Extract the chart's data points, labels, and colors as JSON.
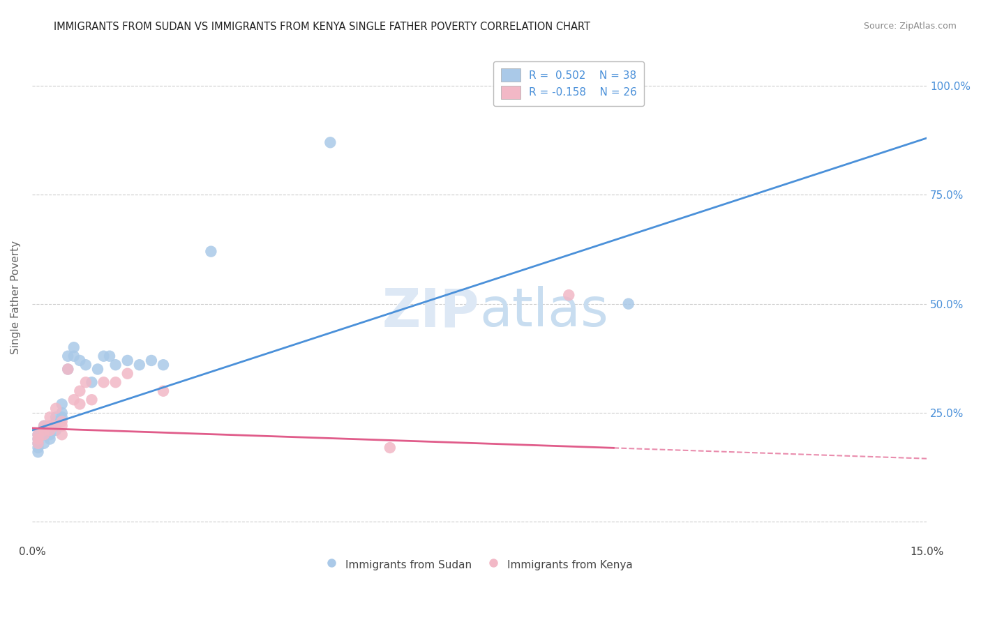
{
  "title": "IMMIGRANTS FROM SUDAN VS IMMIGRANTS FROM KENYA SINGLE FATHER POVERTY CORRELATION CHART",
  "source": "Source: ZipAtlas.com",
  "ylabel": "Single Father Poverty",
  "legend_label1": "Immigrants from Sudan",
  "legend_label2": "Immigrants from Kenya",
  "r1": 0.502,
  "n1": 38,
  "r2": -0.158,
  "n2": 26,
  "xlim": [
    0.0,
    0.15
  ],
  "ylim": [
    -0.05,
    1.08
  ],
  "yticks": [
    0.0,
    0.25,
    0.5,
    0.75,
    1.0
  ],
  "bg_color": "#ffffff",
  "grid_color": "#cccccc",
  "color_sudan": "#aac9e8",
  "color_kenya": "#f2b8c6",
  "trend_color_sudan": "#4a90d9",
  "trend_color_kenya": "#e05c8a",
  "sudan_x": [
    0.001,
    0.001,
    0.001,
    0.001,
    0.001,
    0.002,
    0.002,
    0.002,
    0.002,
    0.003,
    0.003,
    0.003,
    0.003,
    0.004,
    0.004,
    0.004,
    0.004,
    0.005,
    0.005,
    0.005,
    0.006,
    0.006,
    0.007,
    0.007,
    0.008,
    0.009,
    0.01,
    0.011,
    0.012,
    0.013,
    0.014,
    0.016,
    0.018,
    0.02,
    0.022,
    0.03,
    0.05,
    0.1
  ],
  "sudan_y": [
    0.18,
    0.19,
    0.2,
    0.16,
    0.17,
    0.21,
    0.22,
    0.2,
    0.18,
    0.2,
    0.21,
    0.22,
    0.19,
    0.23,
    0.22,
    0.24,
    0.21,
    0.25,
    0.27,
    0.24,
    0.35,
    0.38,
    0.4,
    0.38,
    0.37,
    0.36,
    0.32,
    0.35,
    0.38,
    0.38,
    0.36,
    0.37,
    0.36,
    0.37,
    0.36,
    0.62,
    0.87,
    0.5
  ],
  "kenya_x": [
    0.001,
    0.001,
    0.001,
    0.002,
    0.002,
    0.002,
    0.003,
    0.003,
    0.003,
    0.004,
    0.004,
    0.005,
    0.005,
    0.005,
    0.006,
    0.007,
    0.008,
    0.008,
    0.009,
    0.01,
    0.012,
    0.014,
    0.016,
    0.022,
    0.06,
    0.09
  ],
  "kenya_y": [
    0.2,
    0.19,
    0.18,
    0.22,
    0.21,
    0.2,
    0.24,
    0.22,
    0.21,
    0.26,
    0.22,
    0.23,
    0.2,
    0.22,
    0.35,
    0.28,
    0.3,
    0.27,
    0.32,
    0.28,
    0.32,
    0.32,
    0.34,
    0.3,
    0.17,
    0.52
  ],
  "sudan_trendline_x0": 0.0,
  "sudan_trendline_y0": 0.21,
  "sudan_trendline_x1": 0.15,
  "sudan_trendline_y1": 0.88,
  "kenya_trendline_x0": 0.0,
  "kenya_trendline_y0": 0.215,
  "kenya_trendline_x1": 0.15,
  "kenya_trendline_y1": 0.145
}
